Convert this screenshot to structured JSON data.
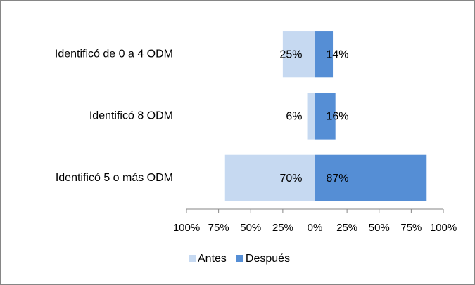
{
  "chart_data": {
    "type": "diverging-bar",
    "categories": [
      "Identificó de 0 a 4 ODM",
      "Identificó 8 ODM",
      "Identificó 5 o más ODM"
    ],
    "series": [
      {
        "name": "Antes",
        "color": "#c6d9f1",
        "side": "left",
        "values": [
          25,
          6,
          70
        ],
        "value_labels": [
          "25%",
          "6%",
          "70%"
        ]
      },
      {
        "name": "Después",
        "color": "#558ed5",
        "side": "right",
        "values": [
          14,
          16,
          87
        ],
        "value_labels": [
          "14%",
          "16%",
          "87%"
        ]
      }
    ],
    "xlim": [
      -100,
      100
    ],
    "xticks": [
      {
        "value": -100,
        "label": "100%"
      },
      {
        "value": -75,
        "label": "75%"
      },
      {
        "value": -50,
        "label": "50%"
      },
      {
        "value": -25,
        "label": "25%"
      },
      {
        "value": 0,
        "label": "0%"
      },
      {
        "value": 25,
        "label": "25%"
      },
      {
        "value": 50,
        "label": "50%"
      },
      {
        "value": 75,
        "label": "75%"
      },
      {
        "value": 100,
        "label": "100%"
      }
    ],
    "legend": "bottom"
  }
}
